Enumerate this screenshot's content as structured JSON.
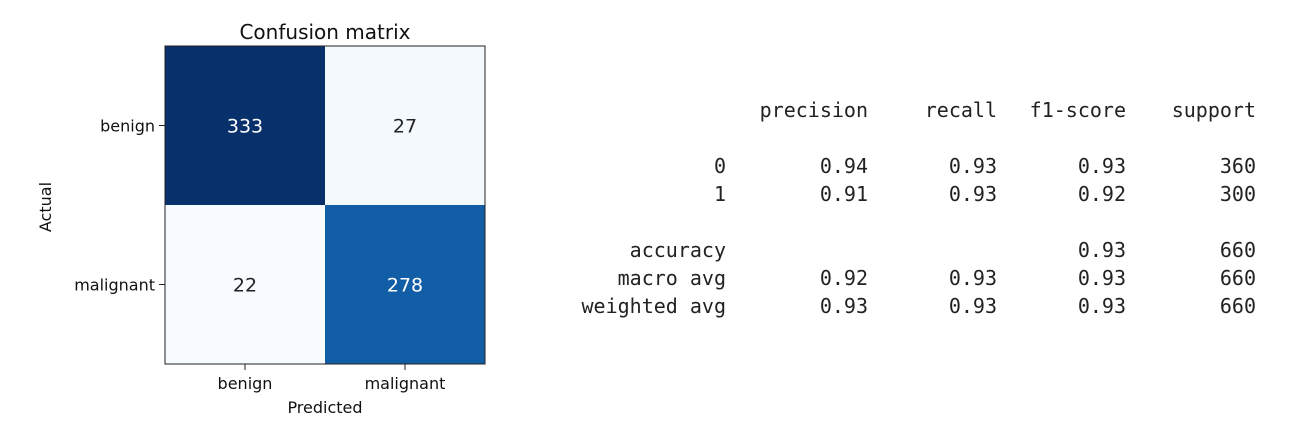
{
  "chart_data": {
    "type": "heatmap",
    "title": "Confusion matrix",
    "xlabel": "Predicted",
    "ylabel": "Actual",
    "x_tick_labels": [
      "benign",
      "malignant"
    ],
    "y_tick_labels": [
      "benign",
      "malignant"
    ],
    "values": [
      [
        333,
        27
      ],
      [
        22,
        278
      ]
    ],
    "colormap": "Blues",
    "colors": {
      "low": "#f7fbff",
      "high": "#08306b",
      "text_dark": "#222222",
      "text_light": "#ffffff"
    }
  },
  "report": {
    "headers": [
      "precision",
      "recall",
      "f1-score",
      "support"
    ],
    "rows": [
      {
        "label": "0",
        "values": [
          "0.94",
          "0.93",
          "0.93",
          "360"
        ]
      },
      {
        "label": "1",
        "values": [
          "0.91",
          "0.93",
          "0.92",
          "300"
        ]
      },
      {
        "label": "accuracy",
        "values": [
          "",
          "",
          "0.93",
          "660"
        ]
      },
      {
        "label": "macro avg",
        "values": [
          "0.92",
          "0.93",
          "0.93",
          "660"
        ]
      },
      {
        "label": "weighted avg",
        "values": [
          "0.93",
          "0.93",
          "0.93",
          "660"
        ]
      }
    ]
  }
}
